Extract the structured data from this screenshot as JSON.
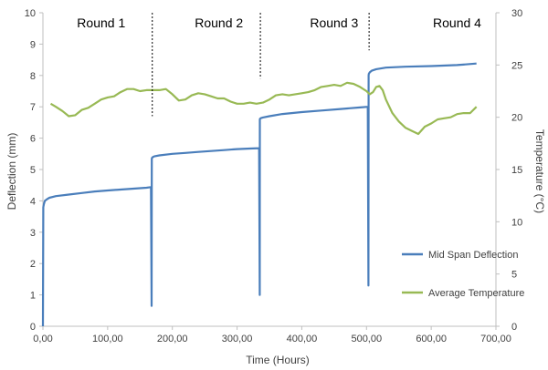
{
  "chart_data": {
    "type": "line",
    "title": "",
    "xlabel": "Time (Hours)",
    "ylabel": "Deflection (mm)",
    "y2label": "Temperature (°C)",
    "xlim": [
      0,
      700
    ],
    "ylim": [
      0,
      10
    ],
    "y2lim": [
      0,
      30
    ],
    "x_ticks": [
      "0,00",
      "100,00",
      "200,00",
      "300,00",
      "400,00",
      "500,00",
      "600,00",
      "700,00"
    ],
    "y_ticks": [
      "0",
      "1",
      "2",
      "3",
      "4",
      "5",
      "6",
      "7",
      "8",
      "9",
      "10"
    ],
    "y2_ticks": [
      "0",
      "5",
      "10",
      "15",
      "20",
      "25",
      "30"
    ],
    "grid": false,
    "legend_position": "bottom-right",
    "colors": {
      "deflection": "#4a7ebb",
      "temperature": "#98b954",
      "separator": "#000000"
    },
    "round_labels": [
      {
        "label": "Round 1",
        "x": 90
      },
      {
        "label": "Round 2",
        "x": 272
      },
      {
        "label": "Round 3",
        "x": 450
      },
      {
        "label": "Round 4",
        "x": 640
      }
    ],
    "round_boundaries": [
      {
        "x": 169,
        "y_from": 6.7,
        "y_to": 10
      },
      {
        "x": 336,
        "y_from": 7.9,
        "y_to": 10
      },
      {
        "x": 504,
        "y_from": 8.8,
        "y_to": 10
      }
    ],
    "series": [
      {
        "name": "Mid Span Deflection",
        "axis": "left",
        "x": [
          0,
          0.5,
          1.5,
          3,
          6,
          10,
          20,
          40,
          60,
          80,
          100,
          120,
          140,
          160,
          167,
          168,
          168.2,
          168.5,
          170,
          172,
          180,
          200,
          220,
          240,
          260,
          280,
          300,
          320,
          334,
          335,
          335.2,
          335.5,
          337,
          340,
          350,
          370,
          400,
          430,
          460,
          490,
          502,
          503,
          503.2,
          503.5,
          505,
          508,
          515,
          530,
          560,
          600,
          640,
          670
        ],
        "y": [
          0,
          3.8,
          3.9,
          4.0,
          4.05,
          4.1,
          4.15,
          4.2,
          4.25,
          4.3,
          4.33,
          4.36,
          4.39,
          4.42,
          4.44,
          0.65,
          5.35,
          5.37,
          5.4,
          5.42,
          5.45,
          5.5,
          5.53,
          5.56,
          5.59,
          5.62,
          5.65,
          5.67,
          5.68,
          1.0,
          6.6,
          6.62,
          6.64,
          6.66,
          6.7,
          6.77,
          6.83,
          6.88,
          6.93,
          6.98,
          7.0,
          1.3,
          8.0,
          8.05,
          8.1,
          8.15,
          8.2,
          8.25,
          8.28,
          8.3,
          8.33,
          8.38
        ]
      },
      {
        "name": "Average Temperature",
        "axis": "right",
        "x": [
          12,
          20,
          30,
          40,
          50,
          60,
          70,
          80,
          90,
          100,
          110,
          120,
          130,
          140,
          150,
          160,
          170,
          180,
          190,
          200,
          210,
          220,
          230,
          240,
          250,
          260,
          270,
          280,
          290,
          300,
          310,
          320,
          330,
          340,
          350,
          360,
          370,
          380,
          390,
          400,
          410,
          420,
          430,
          440,
          450,
          460,
          470,
          480,
          490,
          500,
          505,
          510,
          515,
          520,
          525,
          530,
          540,
          550,
          560,
          570,
          580,
          590,
          600,
          610,
          620,
          630,
          640,
          650,
          660,
          670
        ],
        "y": [
          21.3,
          21.0,
          20.6,
          20.1,
          20.2,
          20.7,
          20.9,
          21.3,
          21.7,
          21.9,
          22.0,
          22.4,
          22.7,
          22.7,
          22.5,
          22.6,
          22.6,
          22.6,
          22.7,
          22.2,
          21.6,
          21.7,
          22.1,
          22.3,
          22.2,
          22.0,
          21.8,
          21.8,
          21.5,
          21.3,
          21.3,
          21.4,
          21.3,
          21.4,
          21.7,
          22.1,
          22.2,
          22.1,
          22.2,
          22.3,
          22.4,
          22.6,
          22.9,
          23.0,
          23.1,
          23.0,
          23.3,
          23.2,
          22.9,
          22.5,
          22.2,
          22.4,
          22.9,
          23.0,
          22.6,
          21.7,
          20.4,
          19.6,
          19.0,
          18.7,
          18.4,
          19.1,
          19.4,
          19.8,
          19.9,
          20.0,
          20.3,
          20.4,
          20.4,
          21.0
        ]
      }
    ]
  }
}
